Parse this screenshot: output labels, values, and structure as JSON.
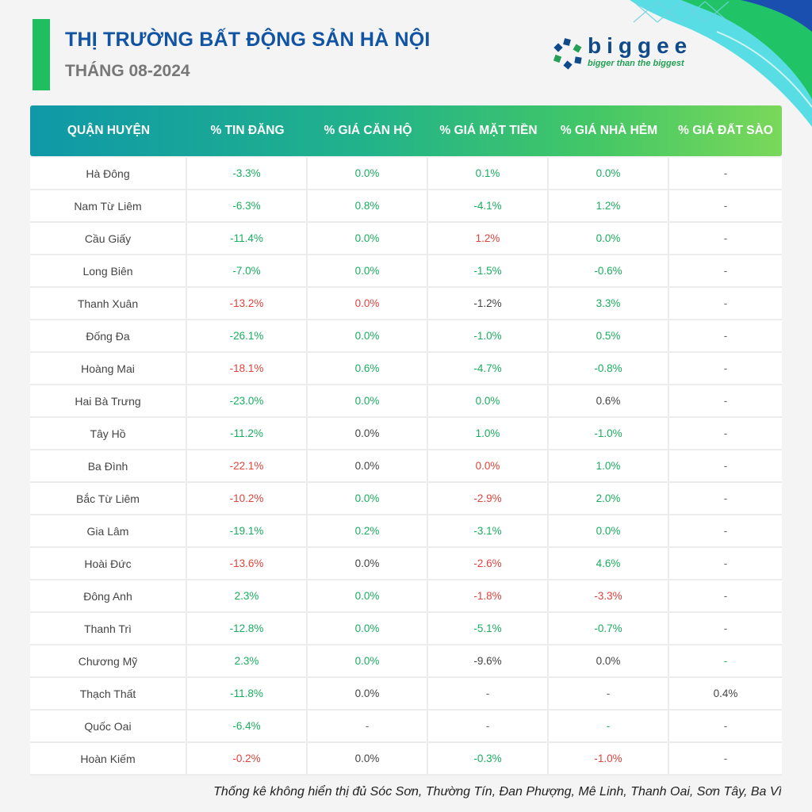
{
  "header": {
    "title": "THỊ TRƯỜNG BẤT ĐỘNG SẢN HÀ NỘI",
    "subtitle": "THÁNG 08-2024"
  },
  "logo": {
    "name": "biggee",
    "tagline": "bigger than the biggest"
  },
  "colors": {
    "title_blue": "#1254a4",
    "accent_green": "#1fbf5f",
    "negative_red": "#e0433b",
    "positive_green": "#1aae5f",
    "header_gradient_start": "#0f98a8",
    "header_gradient_end": "#7ad85a"
  },
  "table": {
    "headers": [
      "QUẬN HUYỆN",
      "% TIN ĐĂNG",
      "% GIÁ CĂN HỘ",
      "% GIÁ MẶT TIỀN",
      "% GIÁ NHÀ HẺM",
      "% GIÁ ĐẤT SÀO"
    ],
    "rows": [
      {
        "cells": [
          "Hà Đông",
          "-3.3%",
          "0.0%",
          "0.1%",
          "0.0%",
          "-"
        ],
        "tones": [
          "neu",
          "pos",
          "pos",
          "pos",
          "pos",
          "dash"
        ]
      },
      {
        "cells": [
          "Nam Từ Liêm",
          "-6.3%",
          "0.8%",
          "-4.1%",
          "1.2%",
          "-"
        ],
        "tones": [
          "neu",
          "pos",
          "pos",
          "pos",
          "pos",
          "dash"
        ]
      },
      {
        "cells": [
          "Cầu Giấy",
          "-11.4%",
          "0.0%",
          "1.2%",
          "0.0%",
          "-"
        ],
        "tones": [
          "neu",
          "pos",
          "pos",
          "neg",
          "pos",
          "dash"
        ]
      },
      {
        "cells": [
          "Long Biên",
          "-7.0%",
          "0.0%",
          "-1.5%",
          "-0.6%",
          "-"
        ],
        "tones": [
          "neu",
          "pos",
          "pos",
          "pos",
          "pos",
          "dash"
        ]
      },
      {
        "cells": [
          "Thanh Xuân",
          "-13.2%",
          "0.0%",
          "-1.2%",
          "3.3%",
          "-"
        ],
        "tones": [
          "neu",
          "neg",
          "neg",
          "neu",
          "pos",
          "dash"
        ]
      },
      {
        "cells": [
          "Đống Đa",
          "-26.1%",
          "0.0%",
          "-1.0%",
          "0.5%",
          "-"
        ],
        "tones": [
          "neu",
          "pos",
          "pos",
          "pos",
          "pos",
          "dash"
        ]
      },
      {
        "cells": [
          "Hoàng Mai",
          "-18.1%",
          "0.6%",
          "-4.7%",
          "-0.8%",
          "-"
        ],
        "tones": [
          "neu",
          "neg",
          "pos",
          "pos",
          "pos",
          "dash"
        ]
      },
      {
        "cells": [
          "Hai Bà Trưng",
          "-23.0%",
          "0.0%",
          "0.0%",
          "0.6%",
          "-"
        ],
        "tones": [
          "neu",
          "pos",
          "pos",
          "pos",
          "neu",
          "dash"
        ]
      },
      {
        "cells": [
          "Tây Hồ",
          "-11.2%",
          "0.0%",
          "1.0%",
          "-1.0%",
          "-"
        ],
        "tones": [
          "neu",
          "pos",
          "neu",
          "pos",
          "pos",
          "dash"
        ]
      },
      {
        "cells": [
          "Ba Đình",
          "-22.1%",
          "0.0%",
          "0.0%",
          "1.0%",
          "-"
        ],
        "tones": [
          "neu",
          "neg",
          "neu",
          "neg",
          "pos",
          "dash"
        ]
      },
      {
        "cells": [
          "Bắc Từ Liêm",
          "-10.2%",
          "0.0%",
          "-2.9%",
          "2.0%",
          "-"
        ],
        "tones": [
          "neu",
          "neg",
          "pos",
          "neg",
          "pos",
          "dash"
        ]
      },
      {
        "cells": [
          "Gia Lâm",
          "-19.1%",
          "0.2%",
          "-3.1%",
          "0.0%",
          "-"
        ],
        "tones": [
          "neu",
          "pos",
          "pos",
          "pos",
          "pos",
          "dash"
        ]
      },
      {
        "cells": [
          "Hoài Đức",
          "-13.6%",
          "0.0%",
          "-2.6%",
          "4.6%",
          "-"
        ],
        "tones": [
          "neu",
          "neg",
          "neu",
          "neg",
          "pos",
          "dash"
        ]
      },
      {
        "cells": [
          "Đông Anh",
          "2.3%",
          "0.0%",
          "-1.8%",
          "-3.3%",
          "-"
        ],
        "tones": [
          "neu",
          "pos",
          "pos",
          "neg",
          "neg",
          "dash"
        ]
      },
      {
        "cells": [
          "Thanh Trì",
          "-12.8%",
          "0.0%",
          "-5.1%",
          "-0.7%",
          "-"
        ],
        "tones": [
          "neu",
          "pos",
          "pos",
          "pos",
          "pos",
          "dash"
        ]
      },
      {
        "cells": [
          "Chương Mỹ",
          "2.3%",
          "0.0%",
          "-9.6%",
          "0.0%",
          "-"
        ],
        "tones": [
          "neu",
          "pos",
          "pos",
          "neu",
          "neu",
          "pos"
        ]
      },
      {
        "cells": [
          "Thạch Thất",
          "-11.8%",
          "0.0%",
          "-",
          "-",
          "0.4%"
        ],
        "tones": [
          "neu",
          "pos",
          "neu",
          "dash",
          "dash",
          "neu"
        ]
      },
      {
        "cells": [
          "Quốc Oai",
          "-6.4%",
          "-",
          "-",
          "-",
          "-"
        ],
        "tones": [
          "neu",
          "pos",
          "dash",
          "dash",
          "pos",
          "dash"
        ]
      },
      {
        "cells": [
          "Hoàn Kiếm",
          "-0.2%",
          "0.0%",
          "-0.3%",
          "-1.0%",
          "-"
        ],
        "tones": [
          "neu",
          "neg",
          "neu",
          "pos",
          "neg",
          "dash"
        ]
      }
    ]
  },
  "footnote": "Thống kê không hiển thị đủ Sóc Sơn, Thường Tín, Đan Phượng, Mê Linh, Thanh Oai, Sơn Tây, Ba Vì"
}
